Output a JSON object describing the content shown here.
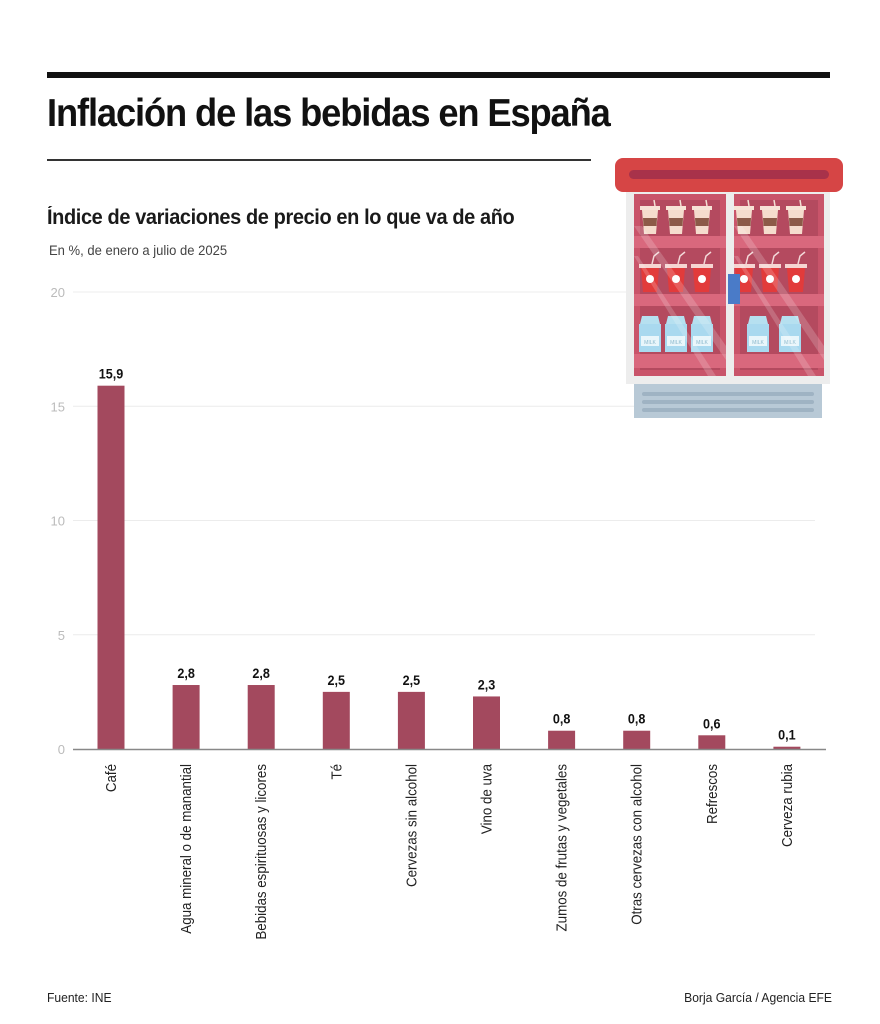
{
  "header": {
    "title": "Inflación de las bebidas en España",
    "subtitle": "Índice de variaciones de precio en lo que va de año",
    "note": "En %, de enero a julio de 2025"
  },
  "illustration": {
    "name": "refrigerator-icon",
    "description": "Drinks fridge with coffee cups, soda cups and milk cartons",
    "carton_label": "MILK"
  },
  "footer": {
    "source": "Fuente: INE",
    "credit": "Borja García / Agencia EFE"
  },
  "colors": {
    "bar": "#a3495e",
    "grid": "#ececec",
    "axis": "#888888",
    "tick_label": "#bbbbbb",
    "value_label": "#111111"
  },
  "chart_data": {
    "type": "bar",
    "title": "Índice de variaciones de precio en lo que va de año",
    "subtitle": "En %, de enero a julio de 2025",
    "xlabel": "",
    "ylabel": "",
    "ylim": [
      0,
      20
    ],
    "yticks": [
      0,
      5,
      10,
      15,
      20
    ],
    "grid": true,
    "legend": "none",
    "categories": [
      "Café",
      "Agua mineral o de manantial",
      "Bebidas espirituosas y licores",
      "Té",
      "Cervezas sin alcohol",
      "Vino de uva",
      "Zumos de frutas y vegetales",
      "Otras cervezas con alcohol",
      "Refrescos",
      "Cerveza rubia"
    ],
    "values": [
      15.9,
      2.8,
      2.8,
      2.5,
      2.5,
      2.3,
      0.8,
      0.8,
      0.6,
      0.1
    ],
    "value_labels": [
      "15,9",
      "2,8",
      "2,8",
      "2,5",
      "2,5",
      "2,3",
      "0,8",
      "0,8",
      "0,6",
      "0,1"
    ]
  }
}
